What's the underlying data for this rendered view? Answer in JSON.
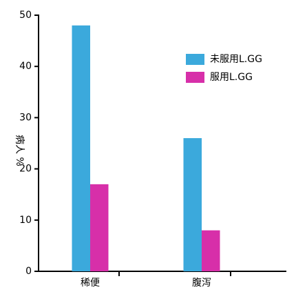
{
  "chart_data": {
    "type": "bar",
    "y_label": "病人 %",
    "categories": [
      "稀便",
      "腹泻"
    ],
    "series": [
      {
        "name": "未服用L.GG",
        "color": "#3ba9dc",
        "values": [
          48,
          26
        ]
      },
      {
        "name": "服用L.GG",
        "color": "#d72fa9",
        "values": [
          17,
          8
        ]
      }
    ],
    "ylim": [
      0,
      50
    ],
    "yticks": [
      0,
      10,
      20,
      30,
      40,
      50
    ]
  }
}
